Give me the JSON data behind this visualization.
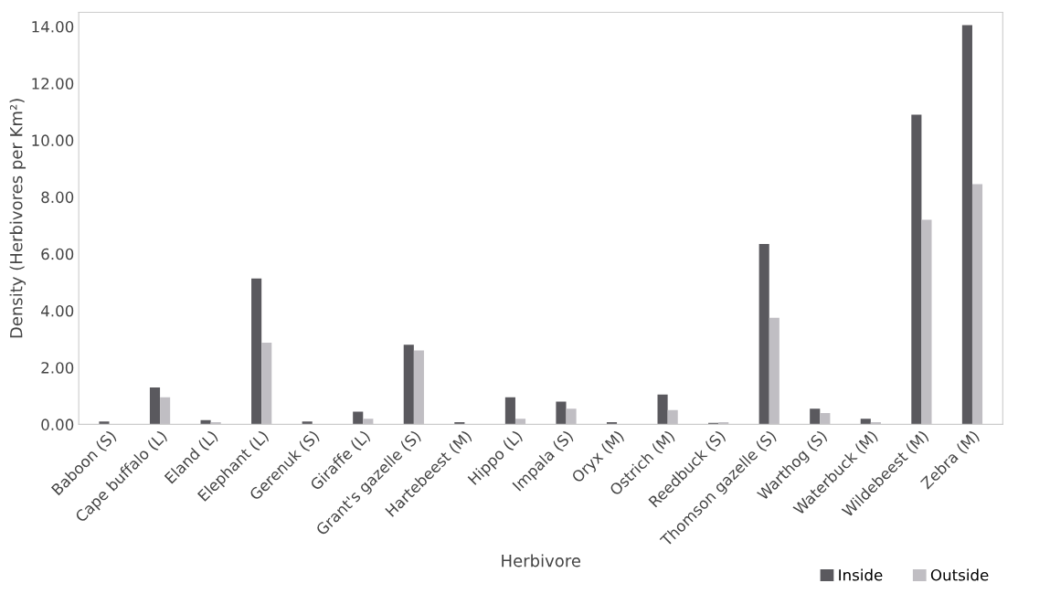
{
  "chart_data": {
    "type": "bar",
    "xlabel": "Herbivore",
    "ylabel": "Density (Herbivores per Km²)",
    "categories": [
      "Baboon (S)",
      "Cape buffalo (L)",
      "Eland (L)",
      "Elephant (L)",
      "Gerenuk (S)",
      "Giraffe (L)",
      "Grant's gazelle (S)",
      "Hartebeest (M)",
      "Hippo (L)",
      "Impala (S)",
      "Oryx (M)",
      "Ostrich (M)",
      "Reedbuck (S)",
      "Thomson gazelle (S)",
      "Warthog (S)",
      "Waterbuck (M)",
      "Wildebeest (M)",
      "Zebra (M)"
    ],
    "series": [
      {
        "name": "Inside",
        "color": "#5a595e",
        "values": [
          0.1,
          1.3,
          0.15,
          5.13,
          0.1,
          0.45,
          2.8,
          0.08,
          0.95,
          0.8,
          0.08,
          1.05,
          0.05,
          6.35,
          0.55,
          0.2,
          10.9,
          14.05
        ]
      },
      {
        "name": "Outside",
        "color": "#c0bec3",
        "values": [
          null,
          0.95,
          0.08,
          2.87,
          null,
          0.2,
          2.6,
          null,
          0.2,
          0.55,
          null,
          0.5,
          0.08,
          3.75,
          0.4,
          0.08,
          7.2,
          8.45
        ]
      }
    ],
    "ylim": [
      0,
      14.5
    ],
    "yticks": [
      {
        "value": 0,
        "label": "0.00"
      },
      {
        "value": 2,
        "label": "2.00"
      },
      {
        "value": 4,
        "label": "4.00"
      },
      {
        "value": 6,
        "label": "6.00"
      },
      {
        "value": 8,
        "label": "8.00"
      },
      {
        "value": 10,
        "label": "10.00"
      },
      {
        "value": 12,
        "label": "12.00"
      },
      {
        "value": 14,
        "label": "14.00"
      }
    ],
    "legend": "bottom right"
  }
}
